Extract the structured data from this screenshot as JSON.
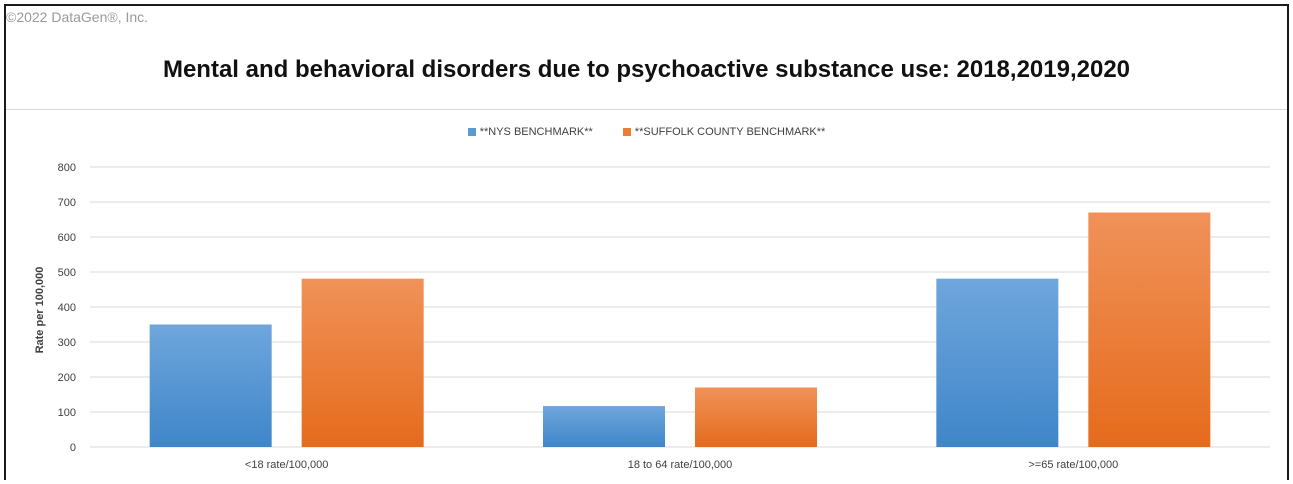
{
  "copyright": "©2022 DataGen®, Inc.",
  "chart_data": {
    "type": "bar",
    "title": "Mental and behavioral disorders due to psychoactive substance use: 2018,2019,2020",
    "xlabel": "",
    "ylabel": "Rate per 100,000",
    "ylim": [
      0,
      800
    ],
    "yticks": [
      0,
      100,
      200,
      300,
      400,
      500,
      600,
      700,
      800
    ],
    "grid": true,
    "legend_position": "top",
    "categories": [
      "<18 rate/100,000",
      "18 to 64 rate/100,000",
      ">=65 rate/100,000"
    ],
    "series": [
      {
        "name": "**NYS BENCHMARK**",
        "values": [
          350,
          117,
          481
        ],
        "color": "#5B9BD5"
      },
      {
        "name": "**SUFFOLK COUNTY BENCHMARK**",
        "values": [
          481,
          170,
          670
        ],
        "color": "#ED7D31"
      }
    ]
  }
}
